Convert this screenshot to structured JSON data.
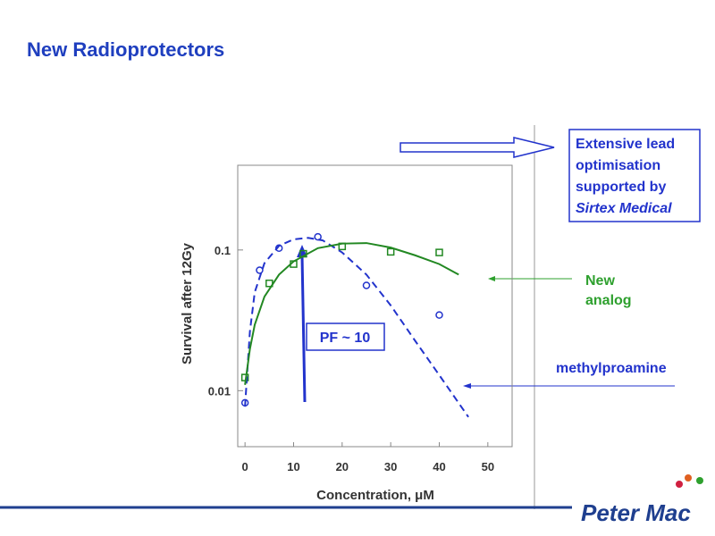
{
  "title": "New Radioprotectors",
  "callout": {
    "lines": [
      "Extensive lead",
      "optimisation",
      "supported by",
      "Sirtex Medical"
    ]
  },
  "pf_label": "PF ~ 10",
  "logo": "Peter Mac",
  "chart_data": {
    "type": "scatter",
    "x_label": "Concentration, μM",
    "y_label": "Survival after 12Gy",
    "log_y": true,
    "xlim": [
      -1.5,
      55
    ],
    "ylim": [
      0.004,
      0.4
    ],
    "xticks": [
      0,
      10,
      20,
      30,
      40,
      50
    ],
    "yticks": [
      0.01,
      0.1
    ],
    "annotations": [
      "New analog",
      "methylproamine"
    ],
    "series": [
      {
        "color": "#2233cc",
        "marker": "circle",
        "x": [
          0,
          3,
          7,
          15,
          25,
          40
        ],
        "values": [
          0.0082,
          0.0718,
          0.103,
          0.124,
          0.056,
          0.0345
        ]
      },
      {
        "color": "#228822",
        "marker": "square",
        "x": [
          0,
          5,
          10,
          12,
          20,
          30,
          40
        ],
        "values": [
          0.0124,
          0.0579,
          0.0794,
          0.094,
          0.106,
          0.097,
          0.096
        ]
      },
      {
        "color": "#2233cc",
        "marker": "dashed-line",
        "x": [
          0,
          1,
          2,
          4,
          7,
          10,
          13,
          16,
          20,
          25,
          30,
          35,
          40,
          46
        ],
        "values": [
          0.0077,
          0.0262,
          0.0501,
          0.0806,
          0.107,
          0.119,
          0.122,
          0.117,
          0.096,
          0.0668,
          0.0404,
          0.0227,
          0.0129,
          0.0065
        ]
      },
      {
        "color": "#228822",
        "marker": "solid-line",
        "x": [
          0,
          1,
          2,
          4,
          7,
          10,
          15,
          20,
          25,
          30,
          35,
          40,
          44
        ],
        "values": [
          0.011,
          0.0197,
          0.0294,
          0.0466,
          0.0668,
          0.0829,
          0.103,
          0.111,
          0.112,
          0.104,
          0.0917,
          0.0794,
          0.0668
        ]
      }
    ]
  }
}
